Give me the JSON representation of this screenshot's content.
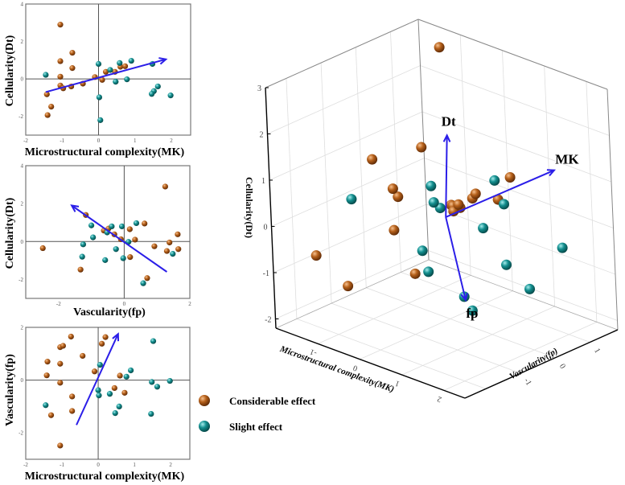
{
  "chart_data": [
    {
      "type": "scatter",
      "title": "",
      "xlabel": "Microstructural complexity(MK)",
      "ylabel": "Cellularity(Dt)",
      "xlim": [
        -2,
        2.53
      ],
      "ylim": [
        -3,
        4
      ],
      "xticks": [
        -2,
        -1,
        0,
        1,
        2
      ],
      "yticks": [
        -2,
        0,
        2,
        4
      ],
      "axes": [
        "MK",
        "Dt"
      ],
      "arrow": {
        "from": [
          -1.45,
          -0.7
        ],
        "to": [
          1.85,
          1.05
        ]
      }
    },
    {
      "type": "scatter",
      "title": "",
      "xlabel": "Vascularity(fp)",
      "ylabel": "Cellularity(Dt)",
      "xlim": [
        -3,
        2
      ],
      "ylim": [
        -3,
        4
      ],
      "xticks": [
        -2,
        0,
        2
      ],
      "yticks": [
        -2,
        0,
        2,
        4
      ],
      "axes": [
        "fp",
        "Dt"
      ],
      "arrow": {
        "from": [
          1.3,
          -1.6
        ],
        "to": [
          -1.6,
          1.9
        ]
      }
    },
    {
      "type": "scatter",
      "title": "",
      "xlabel": "Microstructural complexity(MK)",
      "ylabel": "Vascularity(fp)",
      "xlim": [
        -2,
        2.53
      ],
      "ylim": [
        -3,
        2
      ],
      "xticks": [
        -2,
        -1,
        0,
        1,
        2
      ],
      "yticks": [
        -2,
        0,
        2
      ],
      "axes": [
        "MK",
        "fp"
      ],
      "arrow": {
        "from": [
          -0.6,
          -1.7
        ],
        "to": [
          0.55,
          1.75
        ]
      }
    },
    {
      "type": "scatter3d",
      "xlabel": "Microstructural complexity(MK)",
      "ylabel": "Vascularity(fp)",
      "zlabel": "Cellularity(Dt)",
      "xlim": [
        -2,
        2.5
      ],
      "ylim": [
        -2.6,
        1.8
      ],
      "zlim": [
        -2.2,
        3
      ],
      "xticks": [
        -1,
        0,
        1,
        2
      ],
      "yticks": [
        -1,
        0,
        1
      ],
      "zticks": [
        -2,
        -1,
        0,
        1,
        2,
        3
      ],
      "arrows": [
        {
          "label": "Dt",
          "to": [
            -0.1,
            0.25,
            1.65
          ]
        },
        {
          "label": "MK",
          "to": [
            1.9,
            0.9,
            1.35
          ]
        },
        {
          "label": "fp",
          "to": [
            1.85,
            -1.7,
            -0.6
          ]
        }
      ]
    }
  ],
  "groups": [
    {
      "name": "Considerable effect",
      "color": "#b5601a"
    },
    {
      "name": "Slight effect",
      "color": "#138f8f"
    }
  ],
  "points": [
    {
      "g": 0,
      "MK": -1.05,
      "fp": 1.25,
      "Dt": 2.9
    },
    {
      "g": 0,
      "MK": -0.72,
      "fp": -1.17,
      "Dt": 1.4
    },
    {
      "g": 0,
      "MK": -1.05,
      "fp": 0.62,
      "Dt": 0.95
    },
    {
      "g": 0,
      "MK": -0.72,
      "fp": -0.62,
      "Dt": 0.58
    },
    {
      "g": 0,
      "MK": -1.05,
      "fp": -0.1,
      "Dt": 0.12
    },
    {
      "g": 0,
      "MK": -1.05,
      "fp": -2.48,
      "Dt": -0.35
    },
    {
      "g": 0,
      "MK": -0.97,
      "fp": 1.3,
      "Dt": -0.5
    },
    {
      "g": 0,
      "MK": -0.75,
      "fp": 1.65,
      "Dt": -0.4
    },
    {
      "g": 0,
      "MK": -0.43,
      "fp": 0.92,
      "Dt": -0.25
    },
    {
      "g": 0,
      "MK": -0.1,
      "fp": 0.33,
      "Dt": 0.1
    },
    {
      "g": 0,
      "MK": 0.1,
      "fp": 1.38,
      "Dt": -0.05
    },
    {
      "g": 0,
      "MK": 0.2,
      "fp": 1.63,
      "Dt": 0.38
    },
    {
      "g": 0,
      "MK": 0.45,
      "fp": -0.3,
      "Dt": 0.38
    },
    {
      "g": 0,
      "MK": 0.6,
      "fp": 0.17,
      "Dt": 0.65
    },
    {
      "g": 0,
      "MK": 0.73,
      "fp": -0.48,
      "Dt": 0.68
    },
    {
      "g": 0,
      "MK": -1.42,
      "fp": 0.18,
      "Dt": -0.82
    },
    {
      "g": 0,
      "MK": -1.3,
      "fp": -1.33,
      "Dt": -1.48
    },
    {
      "g": 0,
      "MK": -1.4,
      "fp": 0.7,
      "Dt": -1.93
    },
    {
      "g": 1,
      "MK": -1.45,
      "fp": -0.95,
      "Dt": 0.22
    },
    {
      "g": 1,
      "MK": 0.0,
      "fp": -0.38,
      "Dt": 0.8
    },
    {
      "g": 1,
      "MK": 0.32,
      "fp": -0.52,
      "Dt": 0.48
    },
    {
      "g": 1,
      "MK": 0.58,
      "fp": -1.0,
      "Dt": 0.85
    },
    {
      "g": 1,
      "MK": 0.9,
      "fp": 0.37,
      "Dt": 0.97
    },
    {
      "g": 1,
      "MK": 0.47,
      "fp": -1.25,
      "Dt": -0.15
    },
    {
      "g": 1,
      "MK": 0.78,
      "fp": 0.13,
      "Dt": -0.02
    },
    {
      "g": 1,
      "MK": 1.48,
      "fp": -0.07,
      "Dt": 0.8
    },
    {
      "g": 1,
      "MK": 1.63,
      "fp": -0.25,
      "Dt": -0.4
    },
    {
      "g": 1,
      "MK": 1.52,
      "fp": 1.48,
      "Dt": -0.65
    },
    {
      "g": 1,
      "MK": 1.46,
      "fp": -1.28,
      "Dt": -0.8
    },
    {
      "g": 1,
      "MK": 1.98,
      "fp": -0.03,
      "Dt": -0.88
    },
    {
      "g": 1,
      "MK": 0.02,
      "fp": -0.58,
      "Dt": -0.98
    },
    {
      "g": 1,
      "MK": 0.05,
      "fp": 0.58,
      "Dt": -2.2
    }
  ],
  "arrow_color": "#2b1ee8",
  "legend": {
    "items": [
      "Considerable effect",
      "Slight effect"
    ]
  },
  "labels3d": {
    "x": "Microstructural complexity(MK)",
    "y": "Vascularity(fp)",
    "z": "Cellularity(Dt)"
  }
}
